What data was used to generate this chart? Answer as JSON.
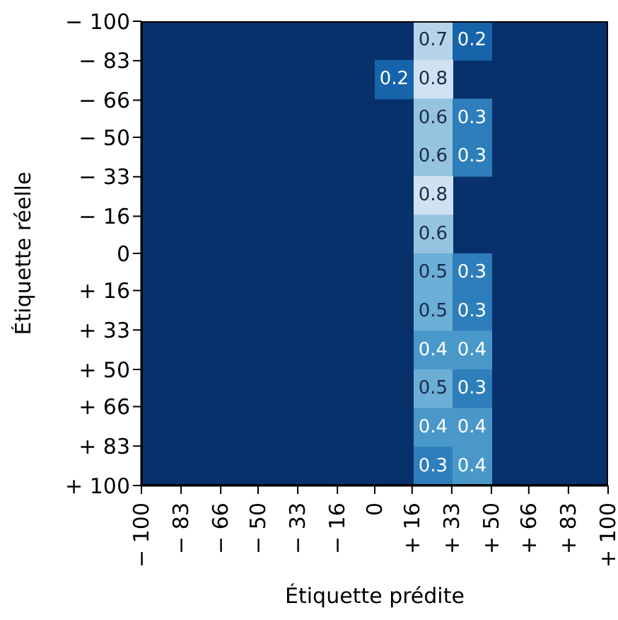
{
  "chart_data": {
    "type": "heatmap",
    "xlabel": "Étiquette prédite",
    "ylabel": "Étiquette réelle",
    "xlim": [
      -100,
      100
    ],
    "ylim": [
      100,
      -100
    ],
    "xticks": [
      {
        "value": -100,
        "label": "− 100"
      },
      {
        "value": -83,
        "label": "− 83"
      },
      {
        "value": -66,
        "label": "− 66"
      },
      {
        "value": -50,
        "label": "− 50"
      },
      {
        "value": -33,
        "label": "− 33"
      },
      {
        "value": -16,
        "label": "− 16"
      },
      {
        "value": 0,
        "label": "0"
      },
      {
        "value": 16,
        "label": "+ 16"
      },
      {
        "value": 33,
        "label": "+ 33"
      },
      {
        "value": 50,
        "label": "+ 50"
      },
      {
        "value": 66,
        "label": "+ 66"
      },
      {
        "value": 83,
        "label": "+ 83"
      },
      {
        "value": 100,
        "label": "+ 100"
      }
    ],
    "yticks": [
      {
        "value": -100,
        "label": "− 100"
      },
      {
        "value": -83,
        "label": "− 83"
      },
      {
        "value": -66,
        "label": "− 66"
      },
      {
        "value": -50,
        "label": "− 50"
      },
      {
        "value": -33,
        "label": "− 33"
      },
      {
        "value": -16,
        "label": "− 16"
      },
      {
        "value": 0,
        "label": "0"
      },
      {
        "value": 16,
        "label": "+ 16"
      },
      {
        "value": 33,
        "label": "+ 33"
      },
      {
        "value": 50,
        "label": "+ 50"
      },
      {
        "value": 66,
        "label": "+ 66"
      },
      {
        "value": 83,
        "label": "+ 83"
      },
      {
        "value": 100,
        "label": "+ 100"
      }
    ],
    "cells": [
      [
        null,
        null,
        null,
        null,
        null,
        null,
        null,
        0.7,
        0.2,
        null,
        null,
        null
      ],
      [
        null,
        null,
        null,
        null,
        null,
        null,
        0.2,
        0.8,
        null,
        null,
        null,
        null
      ],
      [
        null,
        null,
        null,
        null,
        null,
        null,
        null,
        0.6,
        0.3,
        null,
        null,
        null
      ],
      [
        null,
        null,
        null,
        null,
        null,
        null,
        null,
        0.6,
        0.3,
        null,
        null,
        null
      ],
      [
        null,
        null,
        null,
        null,
        null,
        null,
        null,
        0.8,
        null,
        null,
        null,
        null
      ],
      [
        null,
        null,
        null,
        null,
        null,
        null,
        null,
        0.6,
        null,
        null,
        null,
        null
      ],
      [
        null,
        null,
        null,
        null,
        null,
        null,
        null,
        0.5,
        0.3,
        null,
        null,
        null
      ],
      [
        null,
        null,
        null,
        null,
        null,
        null,
        null,
        0.5,
        0.3,
        null,
        null,
        null
      ],
      [
        null,
        null,
        null,
        null,
        null,
        null,
        null,
        0.4,
        0.4,
        null,
        null,
        null
      ],
      [
        null,
        null,
        null,
        null,
        null,
        null,
        null,
        0.5,
        0.3,
        null,
        null,
        null
      ],
      [
        null,
        null,
        null,
        null,
        null,
        null,
        null,
        0.4,
        0.4,
        null,
        null,
        null
      ],
      [
        null,
        null,
        null,
        null,
        null,
        null,
        null,
        0.3,
        0.4,
        null,
        null,
        null
      ]
    ],
    "data_labels": true
  }
}
